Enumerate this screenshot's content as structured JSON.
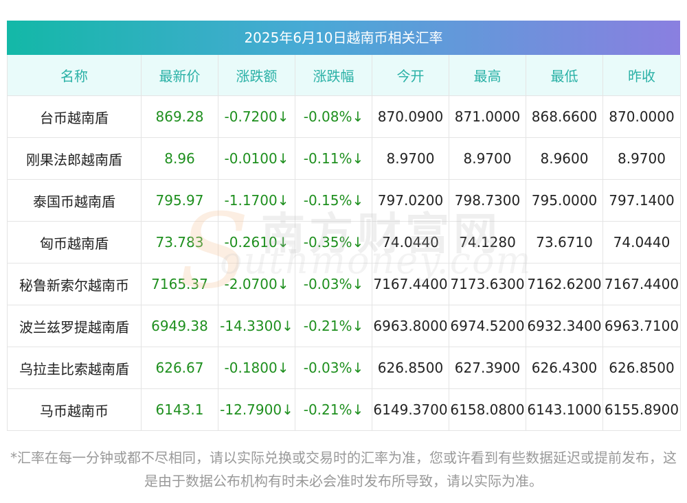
{
  "title": "2025年6月10日越南币相关汇率",
  "headers": [
    "名称",
    "最新价",
    "涨跌额",
    "涨跌幅",
    "今开",
    "最高",
    "最低",
    "昨收"
  ],
  "rows": [
    {
      "name": "台币越南盾",
      "latest": "869.28",
      "change": "-0.7200↓",
      "pct": "-0.08%↓",
      "open": "870.0900",
      "high": "871.0000",
      "low": "868.6600",
      "prev": "870.0000"
    },
    {
      "name": "刚果法郎越南盾",
      "latest": "8.96",
      "change": "-0.0100↓",
      "pct": "-0.11%↓",
      "open": "8.9700",
      "high": "8.9700",
      "low": "8.9600",
      "prev": "8.9700"
    },
    {
      "name": "泰国币越南盾",
      "latest": "795.97",
      "change": "-1.1700↓",
      "pct": "-0.15%↓",
      "open": "797.0200",
      "high": "798.7300",
      "low": "795.0000",
      "prev": "797.1400"
    },
    {
      "name": "匈币越南盾",
      "latest": "73.783",
      "change": "-0.2610↓",
      "pct": "-0.35%↓",
      "open": "74.0440",
      "high": "74.1280",
      "low": "73.6710",
      "prev": "74.0440"
    },
    {
      "name": "秘鲁新索尔越南币",
      "latest": "7165.37",
      "change": "-2.0700↓",
      "pct": "-0.03%↓",
      "open": "7167.4400",
      "high": "7173.6300",
      "low": "7162.6200",
      "prev": "7167.4400"
    },
    {
      "name": "波兰兹罗提越南盾",
      "latest": "6949.38",
      "change": "-14.3300↓",
      "pct": "-0.21%↓",
      "open": "6963.8000",
      "high": "6974.5200",
      "low": "6932.3400",
      "prev": "6963.7100"
    },
    {
      "name": "乌拉圭比索越南盾",
      "latest": "626.67",
      "change": "-0.1800↓",
      "pct": "-0.03%↓",
      "open": "626.8500",
      "high": "627.3900",
      "low": "626.4300",
      "prev": "626.8500"
    },
    {
      "name": "马币越南币",
      "latest": "6143.1",
      "change": "-12.7900↓",
      "pct": "-0.21%↓",
      "open": "6149.3700",
      "high": "6158.0800",
      "low": "6143.1000",
      "prev": "6155.8900"
    }
  ],
  "watermark": {
    "cn": "南方财富网",
    "en": "outhmoney.com",
    "s": "S"
  },
  "note": "*汇率在每一分钟或都不尽相同，请以实际兑换或交易时的汇率为准，您或许看到有些数据延迟或提前发布，这是由于数据公布机构有时未必会准时发布所导致，请以实际为准。",
  "colors": {
    "header_text": "#2ab1a6",
    "header_bg": "#e9fbfa",
    "down_green": "#1e8f1e",
    "title_gradient_start": "#13b8a7",
    "title_gradient_end": "#8a7fe0"
  }
}
